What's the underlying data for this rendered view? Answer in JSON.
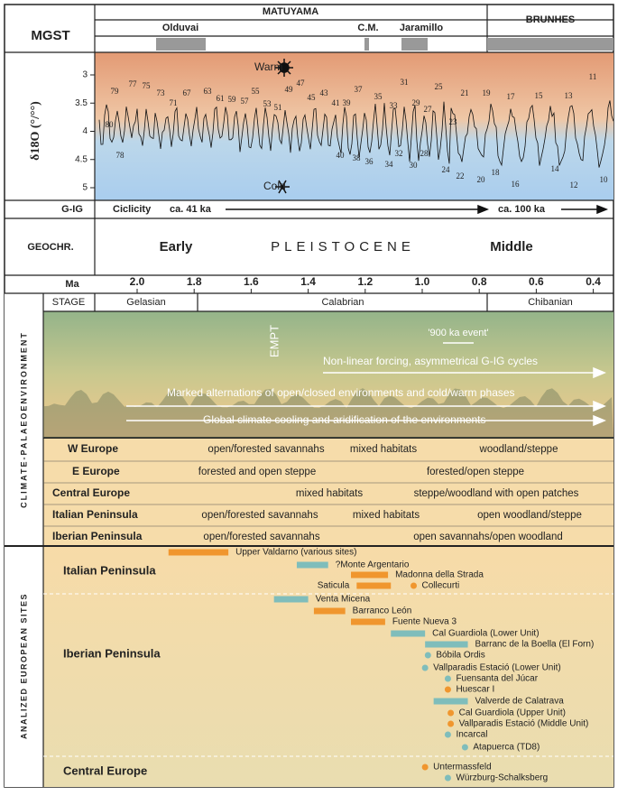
{
  "header": {
    "mgst": "MGST",
    "matuyama": "MATUYAMA",
    "brunhes": "BRUNHES",
    "subchrons": [
      "Olduvai",
      "C.M.",
      "Jaramillo"
    ]
  },
  "isotope": {
    "axis_label": "δ18O (°/°°)",
    "ticks": [
      3,
      3.5,
      4,
      4.5,
      5
    ],
    "warm": "Warm",
    "cold": "Cold",
    "mis_top": [
      "79",
      "77",
      "75",
      "73",
      "71",
      "67",
      "63",
      "61",
      "59",
      "57",
      "55",
      "53",
      "51",
      "49",
      "47",
      "45",
      "43",
      "41",
      "39",
      "37",
      "35",
      "33",
      "31",
      "29",
      "27",
      "25",
      "23",
      "21",
      "19",
      "17",
      "15",
      "13",
      "11"
    ],
    "mis_bottom": [
      "80",
      "78",
      "40",
      "38",
      "36",
      "34",
      "32",
      "30",
      "28",
      "24",
      "22",
      "20",
      "18",
      "16",
      "14",
      "12",
      "10"
    ]
  },
  "gig": {
    "label": "G-IG",
    "ciclicity": "Ciclicity",
    "early": "ca. 41 ka",
    "late": "ca. 100 ka"
  },
  "geochr": {
    "label": "GEOCHR.",
    "early": "Early",
    "epoch": "PLEISTOCENE",
    "middle": "Middle"
  },
  "ma_axis": {
    "label": "Ma",
    "ticks": [
      {
        "value": 2,
        "label": "2.0"
      },
      1.8,
      1.6,
      1.4,
      1.2,
      {
        "value": 1,
        "label": "1.0"
      },
      0.8,
      0.6,
      0.4
    ]
  },
  "stage": {
    "label": "STAGE",
    "stages": [
      "Gelasian",
      "Calabrian",
      "Chibanian"
    ]
  },
  "environment": {
    "side_label": "CLIMATE-PALAEOENVIRONMENT",
    "empt": "EMPT",
    "event": "'900 ka event'",
    "lines": [
      "Non-linear forcing,  asymmetrical G-IG cycles",
      "Marked alternations of open/closed environments and cold/warm phases",
      "Global climate cooling and aridification of the environments"
    ]
  },
  "regions": [
    {
      "name": "W Europe",
      "habitats": [
        "open/forested savannahs",
        "mixed habitats",
        "woodland/steppe"
      ]
    },
    {
      "name": "E Europe",
      "habitats": [
        "forested and open steppe",
        "forested/open steppe"
      ]
    },
    {
      "name": "Central Europe",
      "habitats": [
        "mixed habitats",
        "steppe/woodland with open patches"
      ]
    },
    {
      "name": "Italian Peninsula",
      "habitats": [
        "open/forested savannahs",
        "mixed habitats",
        "open woodland/steppe"
      ]
    },
    {
      "name": "Iberian Peninsula",
      "habitats": [
        "open/forested savannahs",
        "open savannahs/open woodland"
      ]
    }
  ],
  "sites": {
    "side_label": "ANALIZED EUROPEAN SITES",
    "groups": [
      "Italian Peninsula",
      "Iberian Peninsula",
      "Central Europe"
    ],
    "list": [
      {
        "name": "Upper Valdarno (various sites)",
        "range": [
          1.89,
          1.68
        ],
        "color": "#f0962e"
      },
      {
        "name": "?Monte Argentario",
        "range": [
          1.44,
          1.33
        ],
        "color": "#7fbdbb"
      },
      {
        "name": "Madonna della Strada",
        "range": [
          1.25,
          1.12
        ],
        "color": "#f0962e"
      },
      {
        "name": "Saticula",
        "range": [
          1.23,
          1.11
        ],
        "color": "#f0962e"
      },
      {
        "name": "Collecurti",
        "age": 1.03,
        "color": "#f0962e"
      },
      {
        "name": "Venta Micena",
        "range": [
          1.52,
          1.4
        ],
        "color": "#7fbdbb"
      },
      {
        "name": "Barranco León",
        "range": [
          1.38,
          1.27
        ],
        "color": "#f0962e"
      },
      {
        "name": "Fuente Nueva 3",
        "range": [
          1.25,
          1.13
        ],
        "color": "#f0962e"
      },
      {
        "name": "Cal Guardiola (Lower Unit)",
        "range": [
          1.11,
          0.99
        ],
        "color": "#7fbdbb"
      },
      {
        "name": "Barranc de la Boella (El Forn)",
        "range": [
          0.99,
          0.84
        ],
        "color": "#7fbdbb"
      },
      {
        "name": "Bóbila Ordis",
        "age": 0.98,
        "color": "#7fbdbb"
      },
      {
        "name": "Vallparadis Estació (Lower Unit)",
        "age": 0.99,
        "color": "#7fbdbb"
      },
      {
        "name": "Fuensanta del Júcar",
        "age": 0.91,
        "color": "#7fbdbb"
      },
      {
        "name": "Huescar I",
        "age": 0.91,
        "color": "#f0962e"
      },
      {
        "name": "Valverde de Calatrava",
        "range": [
          0.96,
          0.84
        ],
        "color": "#7fbdbb"
      },
      {
        "name": "Cal Guardiola (Upper Unit)",
        "age": 0.9,
        "color": "#f0962e"
      },
      {
        "name": "Vallparadis Estació (Middle Unit)",
        "age": 0.9,
        "color": "#f0962e"
      },
      {
        "name": "Incarcal",
        "age": 0.91,
        "color": "#7fbdbb"
      },
      {
        "name": "Atapuerca (TD8)",
        "age": 0.85,
        "color": "#7fbdbb"
      },
      {
        "name": "Untermassfeld",
        "age": 0.99,
        "color": "#f0962e"
      },
      {
        "name": "Würzburg-Schalksberg",
        "age": 0.91,
        "color": "#7fbdbb"
      }
    ]
  }
}
